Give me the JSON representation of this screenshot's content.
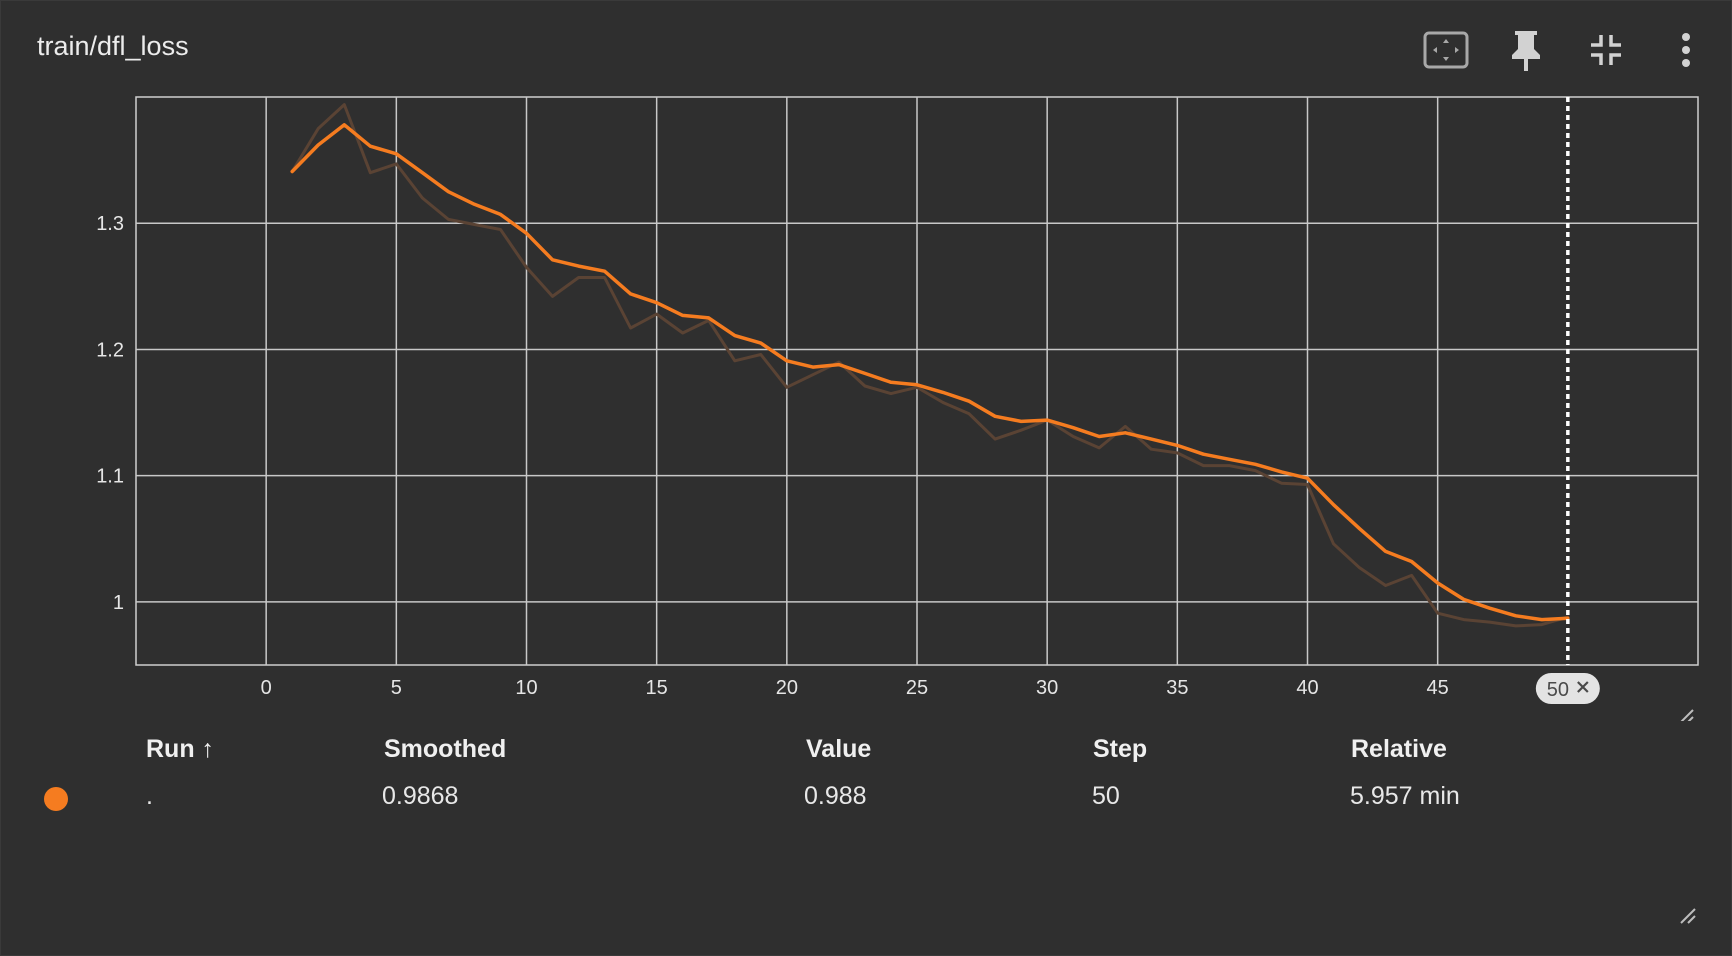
{
  "card": {
    "title": "train/dfl_loss"
  },
  "toolbar": {
    "buttons": [
      {
        "name": "fit-to-data",
        "icon": "fit-domain-icon"
      },
      {
        "name": "pin",
        "icon": "pin-icon"
      },
      {
        "name": "collapse",
        "icon": "collapse-icon"
      },
      {
        "name": "more",
        "icon": "more-vert-icon"
      }
    ]
  },
  "colors": {
    "accent": "#f57c20",
    "raw_line": "#5a4334",
    "grid": "#c8c8c8",
    "background": "#2f2f2f"
  },
  "chart_data": {
    "type": "line",
    "xlim": [
      -5,
      55
    ],
    "ylim": [
      0.95,
      1.4
    ],
    "x_ticks": [
      0,
      5,
      10,
      15,
      20,
      25,
      30,
      35,
      40,
      45
    ],
    "y_ticks": [
      1.0,
      1.1,
      1.2,
      1.3
    ],
    "y_tick_labels": [
      "1",
      "1.1",
      "1.2",
      "1.3"
    ],
    "cursor_step": 50,
    "cursor_label": "50",
    "series": [
      {
        "kind": "raw",
        "x": [
          1,
          2,
          3,
          4,
          5,
          6,
          7,
          8,
          9,
          10,
          11,
          12,
          13,
          14,
          15,
          16,
          17,
          18,
          19,
          20,
          21,
          22,
          23,
          24,
          25,
          26,
          27,
          28,
          29,
          30,
          31,
          32,
          33,
          34,
          35,
          36,
          37,
          38,
          39,
          40,
          41,
          42,
          43,
          44,
          45,
          46,
          47,
          48,
          49,
          50
        ],
        "values": [
          1.341,
          1.375,
          1.394,
          1.34,
          1.347,
          1.32,
          1.303,
          1.299,
          1.295,
          1.265,
          1.242,
          1.257,
          1.257,
          1.217,
          1.228,
          1.213,
          1.223,
          1.191,
          1.196,
          1.17,
          1.18,
          1.19,
          1.171,
          1.165,
          1.17,
          1.158,
          1.149,
          1.129,
          1.136,
          1.144,
          1.131,
          1.122,
          1.139,
          1.121,
          1.118,
          1.108,
          1.108,
          1.104,
          1.094,
          1.093,
          1.046,
          1.027,
          1.013,
          1.021,
          0.991,
          0.986,
          0.984,
          0.981,
          0.982,
          0.988
        ]
      },
      {
        "kind": "smoothed",
        "x": [
          1,
          2,
          3,
          4,
          5,
          6,
          7,
          8,
          9,
          10,
          11,
          12,
          13,
          14,
          15,
          16,
          17,
          18,
          19,
          20,
          21,
          22,
          23,
          24,
          25,
          26,
          27,
          28,
          29,
          30,
          31,
          32,
          33,
          34,
          35,
          36,
          37,
          38,
          39,
          40,
          41,
          42,
          43,
          44,
          45,
          46,
          47,
          48,
          49,
          50
        ],
        "values": [
          1.341,
          1.362,
          1.378,
          1.361,
          1.355,
          1.34,
          1.325,
          1.315,
          1.307,
          1.292,
          1.271,
          1.266,
          1.262,
          1.244,
          1.237,
          1.227,
          1.225,
          1.211,
          1.205,
          1.191,
          1.186,
          1.188,
          1.181,
          1.174,
          1.172,
          1.166,
          1.159,
          1.147,
          1.143,
          1.144,
          1.138,
          1.131,
          1.134,
          1.129,
          1.124,
          1.117,
          1.113,
          1.109,
          1.103,
          1.098,
          1.077,
          1.058,
          1.04,
          1.032,
          1.015,
          1.002,
          0.995,
          0.989,
          0.986,
          0.987
        ]
      }
    ]
  },
  "table": {
    "headers": {
      "run": "Run ↑",
      "smoothed": "Smoothed",
      "value": "Value",
      "step": "Step",
      "relative": "Relative"
    },
    "rows": [
      {
        "color": "#f57c20",
        "run": ".",
        "smoothed": "0.9868",
        "value": "0.988",
        "step": "50",
        "relative": "5.957 min"
      }
    ]
  }
}
